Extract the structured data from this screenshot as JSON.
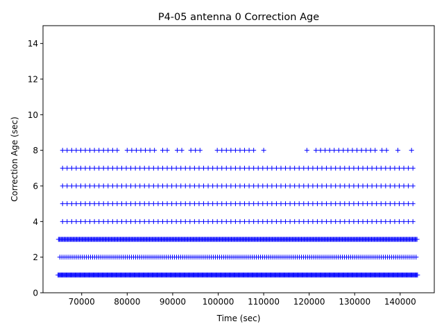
{
  "chart_data": {
    "type": "scatter",
    "title": "P4-05 antenna 0 Correction Age",
    "xlabel": "Time (sec)",
    "ylabel": "Correction Age (sec)",
    "xlim": [
      61500,
      147500
    ],
    "ylim": [
      0,
      15
    ],
    "grid": false,
    "marker": "+",
    "color": "#0000ff",
    "xticks": [
      70000,
      80000,
      90000,
      100000,
      110000,
      120000,
      130000,
      140000
    ],
    "xtick_labels": [
      "70000",
      "80000",
      "90000",
      "100000",
      "110000",
      "120000",
      "130000",
      "140000"
    ],
    "yticks": [
      0,
      2,
      4,
      6,
      8,
      10,
      12,
      14
    ],
    "ytick_labels": [
      "0",
      "2",
      "4",
      "6",
      "8",
      "10",
      "12",
      "14"
    ],
    "series": [
      {
        "y": 1,
        "spacing_sec": 180,
        "ranges": [
          [
            64800,
            143900
          ]
        ]
      },
      {
        "y": 2,
        "spacing_sec": 450,
        "ranges": [
          [
            65200,
            143500
          ]
        ]
      },
      {
        "y": 3,
        "spacing_sec": 200,
        "ranges": [
          [
            64900,
            143800
          ]
        ]
      },
      {
        "y": 4,
        "spacing_sec": 1000,
        "ranges": [
          [
            65800,
            143700
          ]
        ]
      },
      {
        "y": 5,
        "spacing_sec": 1000,
        "ranges": [
          [
            65800,
            143700
          ]
        ]
      },
      {
        "y": 6,
        "spacing_sec": 1000,
        "ranges": [
          [
            65800,
            143700
          ]
        ]
      },
      {
        "y": 7,
        "spacing_sec": 1000,
        "ranges": [
          [
            65800,
            143700
          ]
        ]
      },
      {
        "y": 8,
        "spacing_sec": 1000,
        "ranges": [
          [
            65800,
            78000
          ],
          [
            80000,
            86000
          ],
          [
            87800,
            89000
          ],
          [
            91000,
            92000
          ],
          [
            94000,
            96500
          ],
          [
            99800,
            107800
          ],
          [
            110000,
            110500
          ],
          [
            119500,
            120000
          ],
          [
            121500,
            134500
          ],
          [
            136000,
            137300
          ],
          [
            139500,
            140000
          ],
          [
            142500,
            143000
          ]
        ]
      }
    ]
  }
}
